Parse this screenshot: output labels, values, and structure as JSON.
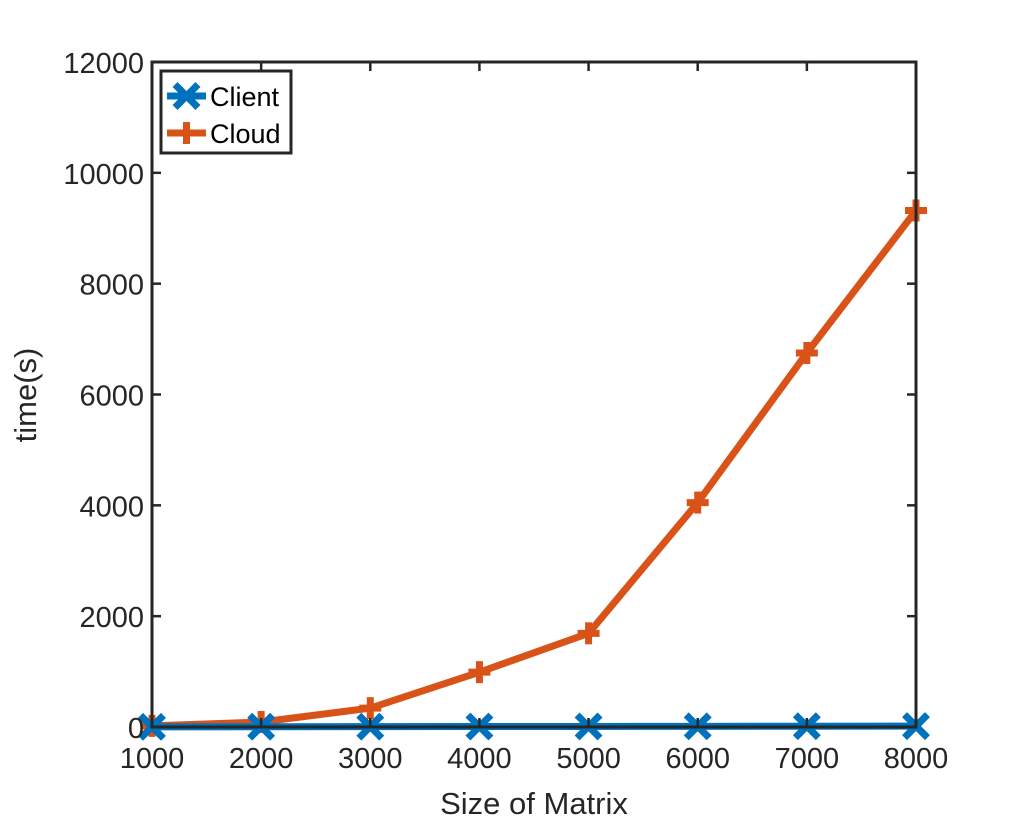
{
  "chart_data": {
    "type": "line",
    "title": "",
    "xlabel": "Size of Matrix",
    "ylabel": "time(s)",
    "x": [
      1000,
      2000,
      3000,
      4000,
      5000,
      6000,
      7000,
      8000
    ],
    "xlim": [
      1000,
      8000
    ],
    "ylim": [
      0,
      12000
    ],
    "x_ticks": [
      1000,
      2000,
      3000,
      4000,
      5000,
      6000,
      7000,
      8000
    ],
    "y_ticks": [
      0,
      2000,
      4000,
      6000,
      8000,
      10000,
      12000
    ],
    "x_tick_labels": [
      "1000",
      "2000",
      "3000",
      "4000",
      "5000",
      "6000",
      "7000",
      "8000"
    ],
    "y_tick_labels": [
      "0",
      "2000",
      "4000",
      "6000",
      "8000",
      "10000",
      "12000"
    ],
    "grid": false,
    "legend_position": "top-left",
    "series": [
      {
        "name": "Client",
        "color": "#0072BD",
        "marker": "x",
        "values": [
          3,
          5,
          6,
          8,
          10,
          12,
          14,
          16
        ]
      },
      {
        "name": "Cloud",
        "color": "#D95319",
        "marker": "+",
        "values": [
          20,
          90,
          340,
          990,
          1690,
          4050,
          6750,
          9320
        ]
      }
    ]
  }
}
